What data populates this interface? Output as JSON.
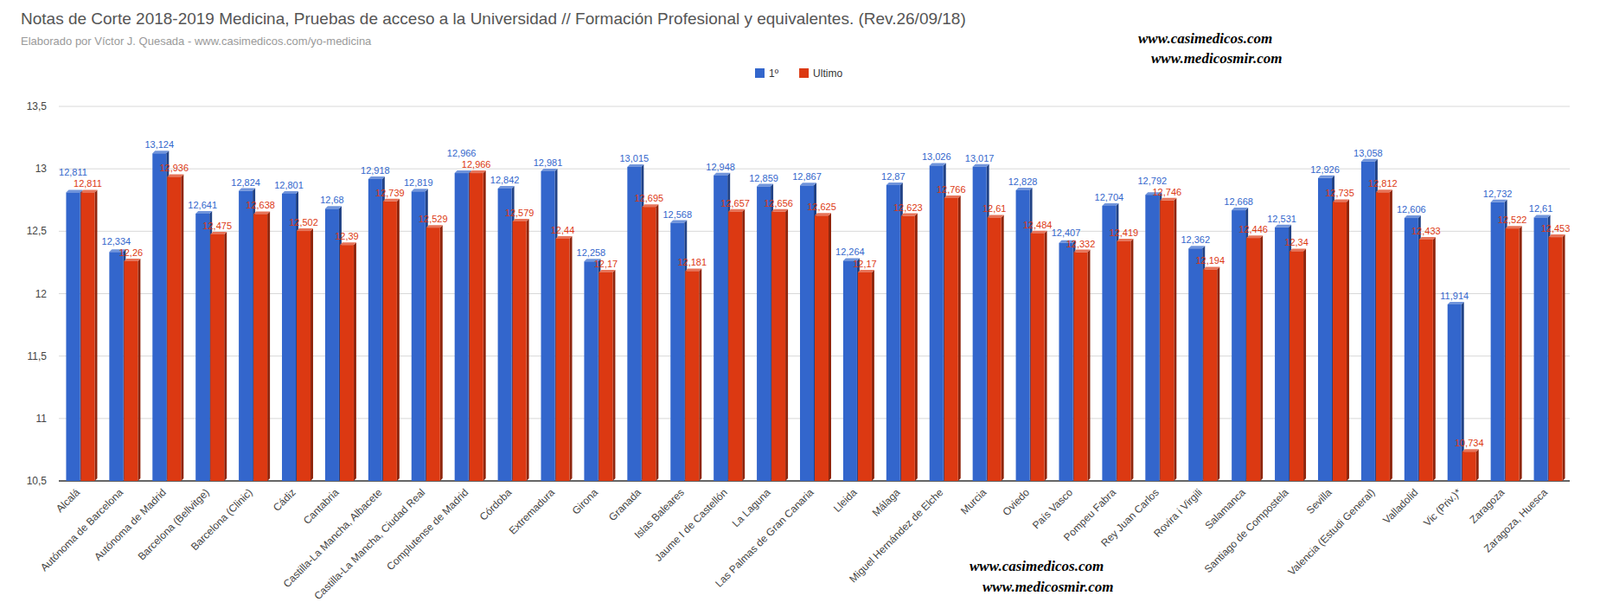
{
  "chart_data": {
    "type": "bar",
    "title": "Notas de Corte 2018-2019 Medicina, Pruebas de acceso a la Universidad // Formación Profesional y equivalentes. (Rev.26/09/18)",
    "subtitle": "Elaborado por Víctor J. Quesada - www.casimedicos.com/yo-medicina",
    "annotations": [
      "www.casimedicos.com",
      "www.medicosmir.com",
      "www.casimedicos.com",
      "www.medicosmir.com"
    ],
    "categories": [
      "Alcalá",
      "Autónoma de Barcelona",
      "Autónoma de Madrid",
      "Barcelona (Bellvitge)",
      "Barcelona (Clinic)",
      "Cádiz",
      "Cantabria",
      "Castilla-La Mancha, Albacete",
      "Castilla-La Mancha, Ciudad Real",
      "Complutense de Madrid",
      "Córdoba",
      "Extremadura",
      "Girona",
      "Granada",
      "Islas Baleares",
      "Jaume I de Castellón",
      "La Laguna",
      "Las Palmas de Gran Canaria",
      "Lleida",
      "Málaga",
      "Miguel Hernández de Elche",
      "Murcia",
      "Oviedo",
      "País Vasco",
      "Pompeu Fabra",
      "Rey Juan Carlos",
      "Rovira i Virgili",
      "Salamanca",
      "Santiago de Compostela",
      "Sevilla",
      "Valencia (Estudi General)",
      "Valladolid",
      "Vic (Priv.)*",
      "Zaragoza",
      "Zaragoza, Huesca"
    ],
    "series": [
      {
        "name": "1º",
        "color": "#3366cc",
        "values": [
          12.811,
          12.334,
          13.124,
          12.641,
          12.824,
          12.801,
          12.68,
          12.918,
          12.819,
          12.966,
          12.842,
          12.981,
          12.258,
          13.015,
          12.568,
          12.948,
          12.859,
          12.867,
          12.264,
          12.87,
          13.026,
          13.017,
          12.828,
          12.407,
          12.704,
          12.792,
          12.362,
          12.668,
          12.531,
          12.926,
          13.058,
          12.606,
          11.914,
          12.732,
          12.61
        ],
        "value_labels": [
          "12,811",
          "12,334",
          "13,124",
          "12,641",
          "12,824",
          "12,801",
          "12,68",
          "12,918",
          "12,819",
          "12,966",
          "12,842",
          "12,981",
          "12,258",
          "13,015",
          "12,568",
          "12,948",
          "12,859",
          "12,867",
          "12,264",
          "12,87",
          "13,026",
          "13,017",
          "12,828",
          "12,407",
          "12,704",
          "12,792",
          "12,362",
          "12,668",
          "12,531",
          "12,926",
          "13,058",
          "12,606",
          "11,914",
          "12,732",
          "12,61"
        ]
      },
      {
        "name": "Ultimo",
        "color": "#dc3912",
        "values": [
          12.811,
          12.26,
          12.936,
          12.475,
          12.638,
          12.502,
          12.39,
          12.739,
          12.529,
          12.966,
          12.579,
          12.44,
          12.17,
          12.695,
          12.181,
          12.657,
          12.656,
          12.625,
          12.17,
          12.623,
          12.766,
          12.61,
          12.484,
          12.332,
          12.419,
          12.746,
          12.194,
          12.446,
          12.34,
          12.735,
          12.812,
          12.433,
          10.734,
          12.522,
          12.453
        ],
        "value_labels": [
          "12,811",
          "12,26",
          "12,936",
          "12,475",
          "12,638",
          "12,502",
          "12,39",
          "12,739",
          "12,529",
          "12,966",
          "12,579",
          "12,44",
          "12,17",
          "12,695",
          "12,181",
          "12,657",
          "12,656",
          "12,625",
          "12,17",
          "12,623",
          "12,766",
          "12,61",
          "12,484",
          "12,332",
          "12,419",
          "12,746",
          "12,194",
          "12,446",
          "12,34",
          "12,735",
          "12,812",
          "12,433",
          "10,734",
          "12,522",
          "12,453"
        ]
      }
    ],
    "ylim": [
      10.5,
      13.5
    ],
    "yticks": [
      {
        "value": 10.5,
        "label": "10,5"
      },
      11,
      {
        "value": 11.5,
        "label": "11,5"
      },
      12,
      {
        "value": 12.5,
        "label": "12,5"
      },
      13,
      {
        "value": 13.5,
        "label": "13,5"
      }
    ],
    "grid": true,
    "legend": "top",
    "data_labels": true
  }
}
